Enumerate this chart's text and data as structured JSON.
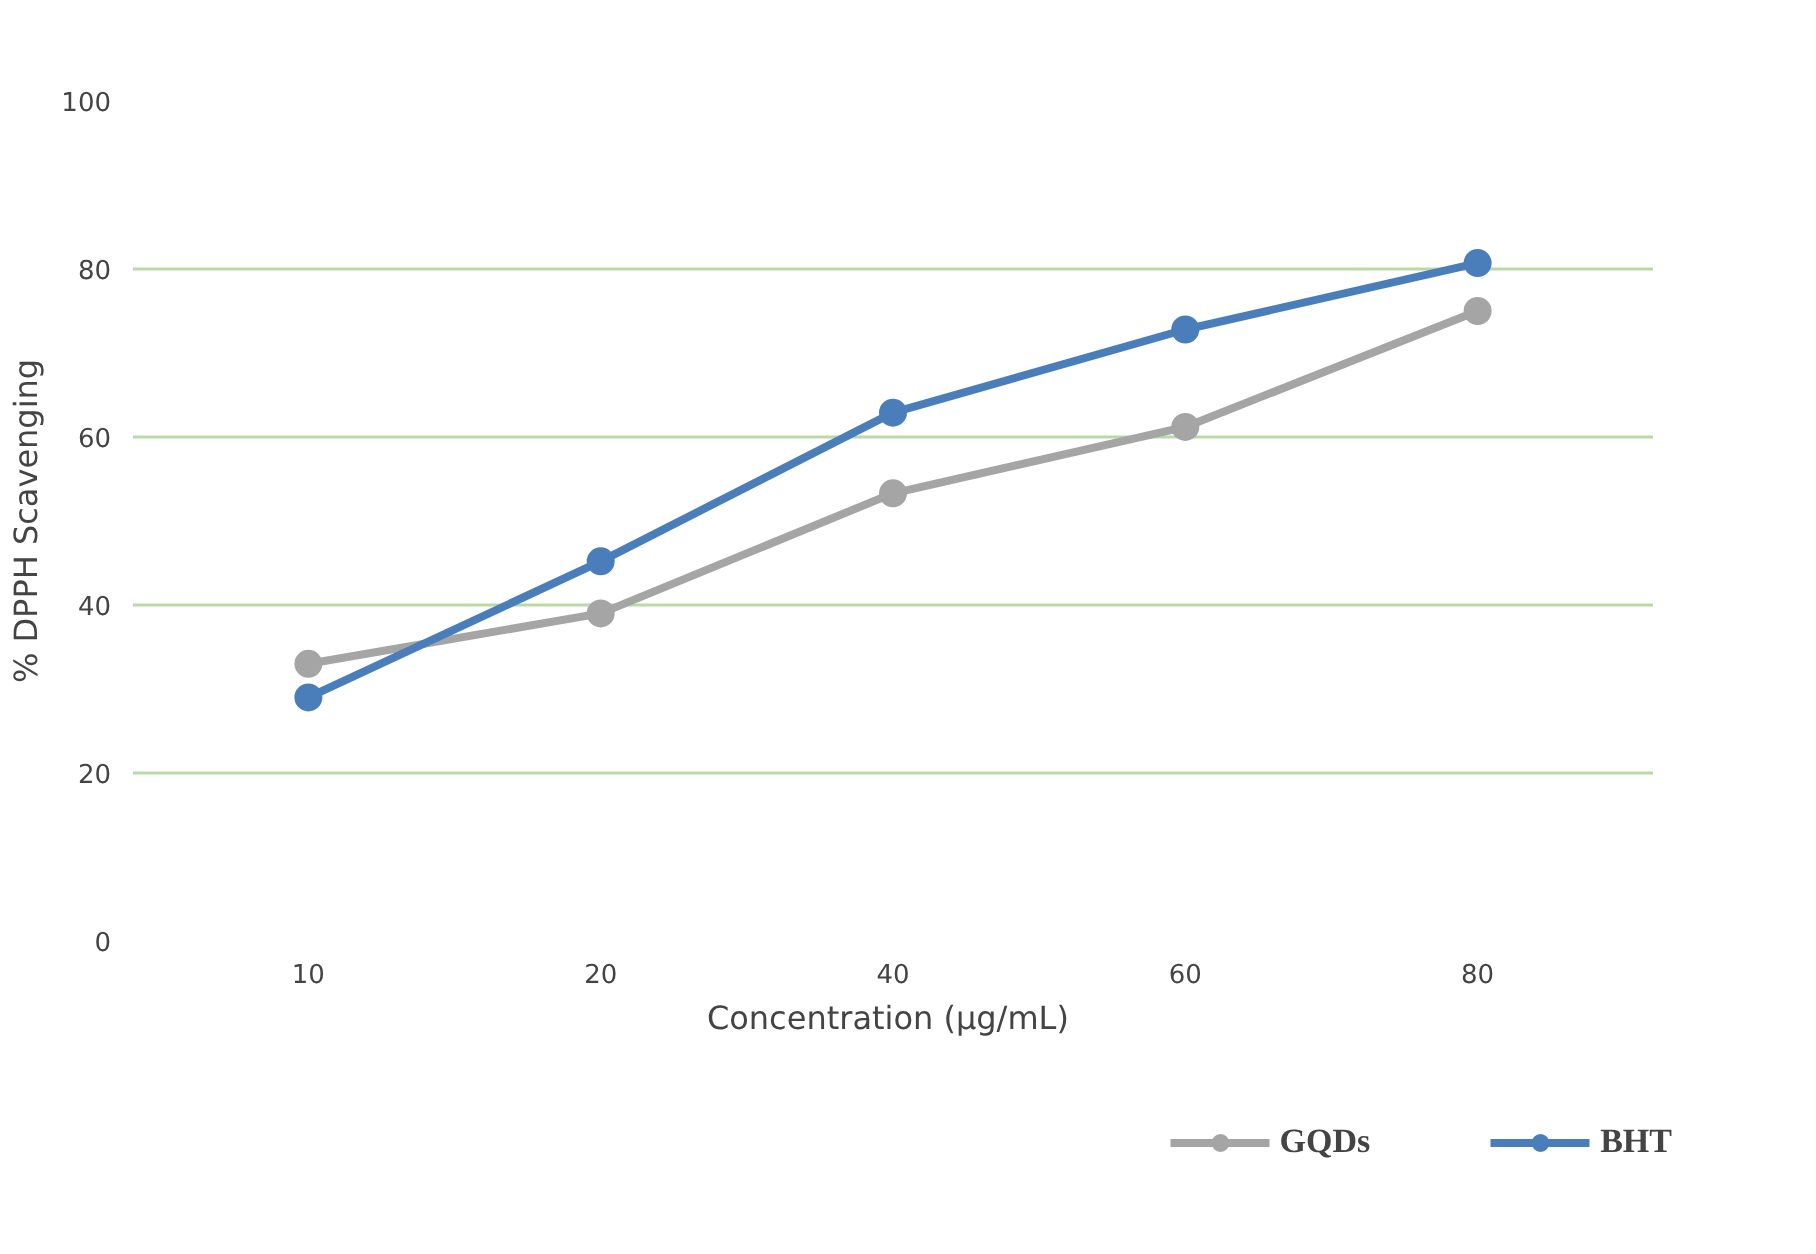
{
  "chart_data": {
    "type": "line",
    "xlabel": "Concentration  (µg/mL)",
    "ylabel": "% DPPH Scavenging",
    "categories": [
      "10",
      "20",
      "40",
      "60",
      "80"
    ],
    "series": [
      {
        "name": "GQDs",
        "color": "#a5a5a5",
        "values": [
          33,
          39,
          53.3,
          61.2,
          75
        ]
      },
      {
        "name": "BHT",
        "color": "#4a7ebb",
        "values": [
          29,
          45.2,
          62.9,
          72.8,
          80.7
        ]
      }
    ],
    "ylim": [
      0,
      100
    ],
    "yticks": [
      0,
      20,
      40,
      60,
      80,
      100
    ],
    "grid": "y",
    "legend": "bottom",
    "marker": "circle",
    "line_style": "solid"
  }
}
